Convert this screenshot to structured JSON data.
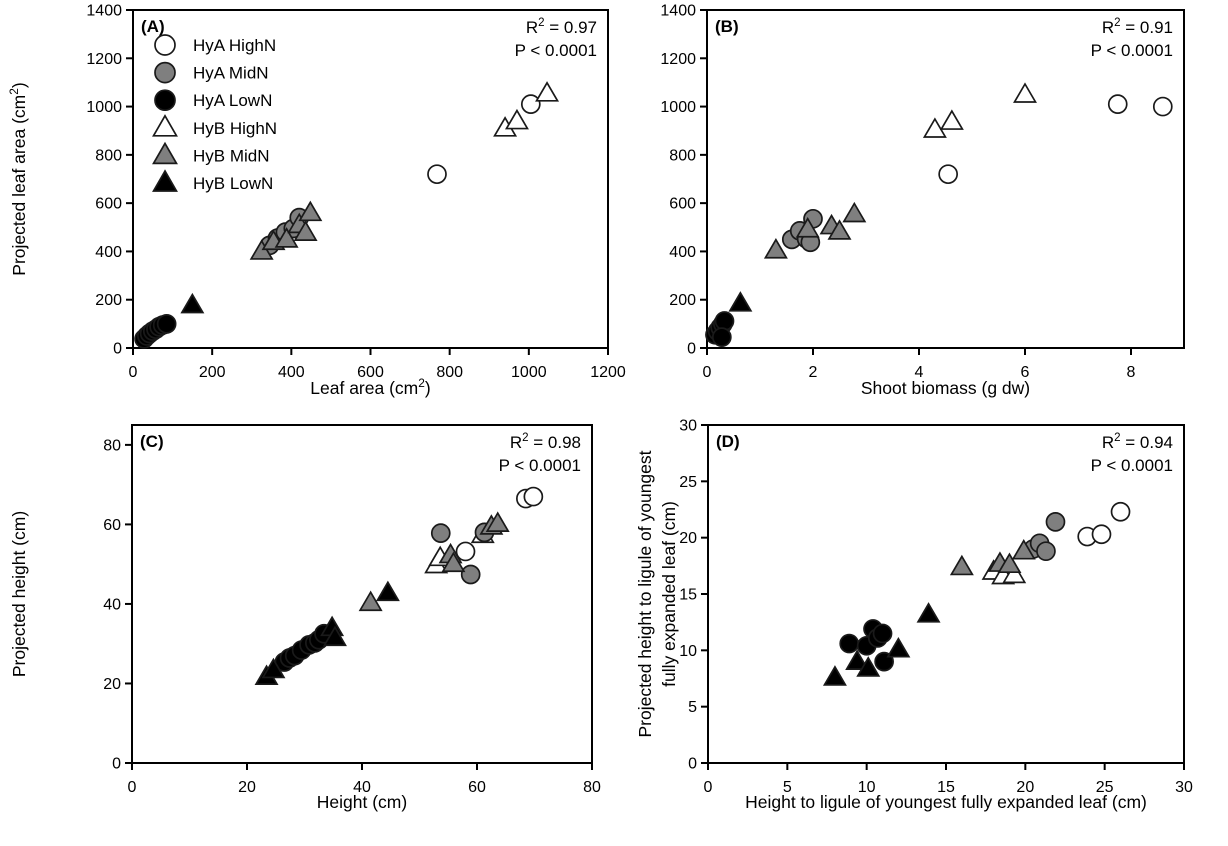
{
  "figure": {
    "background": "#ffffff"
  },
  "colors": {
    "axis": "#000000",
    "marker_stroke": "#1a1a1a",
    "fill_white": "#ffffff",
    "fill_gray": "#7f7f7f",
    "fill_black": "#000000"
  },
  "legend": {
    "shown_in_panel": "A"
  },
  "chart_data": [
    {
      "id": "A",
      "type": "scatter",
      "panel_label": "(A)",
      "stats": {
        "r2_segments": [
          {
            "t": "R"
          },
          {
            "t": "2",
            "sup": true
          },
          {
            "t": " = 0.97"
          }
        ],
        "p_text": "P < 0.0001"
      },
      "xlabel_segments": [
        {
          "t": "Leaf area (cm"
        },
        {
          "t": "2",
          "sup": true
        },
        {
          "t": ")"
        }
      ],
      "ylabel_lines": [
        [
          {
            "t": "Projected leaf area (cm"
          },
          {
            "t": "2",
            "sup": true
          },
          {
            "t": ")"
          }
        ]
      ],
      "xlim": [
        0,
        1200
      ],
      "ylim": [
        0,
        1400
      ],
      "xticks": {
        "values": [
          0,
          200,
          400,
          600,
          800,
          1000,
          1200
        ],
        "labels": [
          "0",
          "200",
          "400",
          "600",
          "800",
          "1000",
          "1200"
        ]
      },
      "yticks": {
        "values": [
          0,
          200,
          400,
          600,
          800,
          1000,
          1200,
          1400
        ],
        "labels": [
          "0",
          "200",
          "400",
          "600",
          "800",
          "1000",
          "1200",
          "1400"
        ]
      },
      "series": [
        {
          "name": "HyA HighN",
          "marker": "circle",
          "fill": "#ffffff",
          "points": [
            [
              768,
              720
            ],
            [
              1005,
              1010
            ]
          ]
        },
        {
          "name": "HyA MidN",
          "marker": "circle",
          "fill": "#7f7f7f",
          "points": [
            [
              345,
              425
            ],
            [
              365,
              455
            ],
            [
              385,
              480
            ],
            [
              405,
              495
            ],
            [
              420,
              540
            ]
          ]
        },
        {
          "name": "HyA LowN",
          "marker": "circle",
          "fill": "#000000",
          "points": [
            [
              28,
              38
            ],
            [
              35,
              50
            ],
            [
              42,
              60
            ],
            [
              50,
              70
            ],
            [
              58,
              78
            ],
            [
              66,
              88
            ],
            [
              75,
              95
            ],
            [
              85,
              100
            ]
          ]
        },
        {
          "name": "HyB HighN",
          "marker": "triangle",
          "fill": "#ffffff",
          "points": [
            [
              940,
              910
            ],
            [
              970,
              940
            ],
            [
              1046,
              1055
            ]
          ]
        },
        {
          "name": "HyB MidN",
          "marker": "triangle",
          "fill": "#7f7f7f",
          "points": [
            [
              325,
              400
            ],
            [
              355,
              440
            ],
            [
              388,
              450
            ],
            [
              420,
              510
            ],
            [
              436,
              478
            ],
            [
              448,
              560
            ]
          ]
        },
        {
          "name": "HyB LowN",
          "marker": "triangle",
          "fill": "#000000",
          "points": [
            [
              150,
              178
            ]
          ]
        }
      ]
    },
    {
      "id": "B",
      "type": "scatter",
      "panel_label": "(B)",
      "stats": {
        "r2_segments": [
          {
            "t": "R"
          },
          {
            "t": "2",
            "sup": true
          },
          {
            "t": " = 0.91"
          }
        ],
        "p_text": "P < 0.0001"
      },
      "xlabel_segments": [
        {
          "t": "Shoot biomass (g dw)"
        }
      ],
      "ylabel_lines": [],
      "xlim": [
        0,
        9.0
      ],
      "ylim": [
        0,
        1400
      ],
      "xticks": {
        "values": [
          0,
          2,
          4,
          6,
          8
        ],
        "labels": [
          "0",
          "2",
          "4",
          "6",
          "8"
        ]
      },
      "yticks": {
        "values": [
          0,
          200,
          400,
          600,
          800,
          1000,
          1200,
          1400
        ],
        "labels": [
          "0",
          "200",
          "400",
          "600",
          "800",
          "1000",
          "1200",
          "1400"
        ]
      },
      "series": [
        {
          "name": "HyA HighN",
          "marker": "circle",
          "fill": "#ffffff",
          "points": [
            [
              4.55,
              720
            ],
            [
              7.75,
              1010
            ],
            [
              8.6,
              1000
            ]
          ]
        },
        {
          "name": "HyA MidN",
          "marker": "circle",
          "fill": "#7f7f7f",
          "points": [
            [
              1.6,
              450
            ],
            [
              1.75,
              485
            ],
            [
              1.88,
              452
            ],
            [
              1.95,
              438
            ],
            [
              2.0,
              535
            ]
          ]
        },
        {
          "name": "HyA LowN",
          "marker": "circle",
          "fill": "#000000",
          "points": [
            [
              0.15,
              55
            ],
            [
              0.2,
              70
            ],
            [
              0.25,
              85
            ],
            [
              0.3,
              100
            ],
            [
              0.33,
              112
            ],
            [
              0.28,
              45
            ]
          ]
        },
        {
          "name": "HyB HighN",
          "marker": "triangle",
          "fill": "#ffffff",
          "points": [
            [
              4.3,
              905
            ],
            [
              4.62,
              938
            ],
            [
              6.0,
              1050
            ]
          ]
        },
        {
          "name": "HyB MidN",
          "marker": "triangle",
          "fill": "#7f7f7f",
          "points": [
            [
              1.3,
              405
            ],
            [
              1.9,
              492
            ],
            [
              2.35,
              505
            ],
            [
              2.5,
              483
            ],
            [
              2.78,
              555
            ]
          ]
        },
        {
          "name": "HyB LowN",
          "marker": "triangle",
          "fill": "#000000",
          "points": [
            [
              0.63,
              185
            ]
          ]
        }
      ]
    },
    {
      "id": "C",
      "type": "scatter",
      "panel_label": "(C)",
      "stats": {
        "r2_segments": [
          {
            "t": "R"
          },
          {
            "t": "2",
            "sup": true
          },
          {
            "t": " = 0.98"
          }
        ],
        "p_text": "P < 0.0001"
      },
      "xlabel_segments": [
        {
          "t": "Height (cm)"
        }
      ],
      "ylabel_lines": [
        [
          {
            "t": "Projected height (cm)"
          }
        ]
      ],
      "xlim": [
        0,
        80
      ],
      "ylim": [
        0,
        85
      ],
      "xticks": {
        "values": [
          0,
          20,
          40,
          60,
          80
        ],
        "labels": [
          "0",
          "20",
          "40",
          "60",
          "80"
        ]
      },
      "yticks": {
        "values": [
          0,
          20,
          40,
          60,
          80
        ],
        "labels": [
          "0",
          "20",
          "40",
          "60",
          "80"
        ]
      },
      "series": [
        {
          "name": "HyA HighN",
          "marker": "circle",
          "fill": "#ffffff",
          "points": [
            [
              58.0,
              53.2
            ],
            [
              68.5,
              66.5
            ],
            [
              69.8,
              67.0
            ]
          ]
        },
        {
          "name": "HyA MidN",
          "marker": "circle",
          "fill": "#7f7f7f",
          "points": [
            [
              53.7,
              57.8
            ],
            [
              58.9,
              47.4
            ],
            [
              61.3,
              58.0
            ]
          ]
        },
        {
          "name": "HyA LowN",
          "marker": "circle",
          "fill": "#000000",
          "points": [
            [
              26.5,
              25.4
            ],
            [
              27.4,
              26.4
            ],
            [
              28.3,
              27.0
            ],
            [
              29.5,
              28.4
            ],
            [
              30.8,
              29.7
            ],
            [
              31.8,
              30.2
            ],
            [
              32.5,
              31.0
            ],
            [
              33.4,
              32.5
            ]
          ]
        },
        {
          "name": "HyB HighN",
          "marker": "triangle",
          "fill": "#ffffff",
          "points": [
            [
              52.9,
              49.8
            ],
            [
              53.6,
              51.6
            ],
            [
              61.0,
              57.4
            ]
          ]
        },
        {
          "name": "HyB MidN",
          "marker": "triangle",
          "fill": "#7f7f7f",
          "points": [
            [
              41.5,
              40.3
            ],
            [
              55.4,
              52.3
            ],
            [
              55.9,
              50.1
            ],
            [
              62.5,
              59.5
            ],
            [
              63.6,
              60.2
            ]
          ]
        },
        {
          "name": "HyB LowN",
          "marker": "triangle",
          "fill": "#000000",
          "points": [
            [
              23.4,
              21.7
            ],
            [
              24.6,
              23.4
            ],
            [
              34.8,
              34.0
            ],
            [
              35.3,
              31.5
            ],
            [
              44.5,
              42.8
            ]
          ]
        }
      ]
    },
    {
      "id": "D",
      "type": "scatter",
      "panel_label": "(D)",
      "stats": {
        "r2_segments": [
          {
            "t": "R"
          },
          {
            "t": "2",
            "sup": true
          },
          {
            "t": " = 0.94"
          }
        ],
        "p_text": "P < 0.0001"
      },
      "xlabel_segments": [
        {
          "t": "Height to ligule of youngest fully expanded leaf (cm)"
        }
      ],
      "ylabel_lines": [
        [
          {
            "t": "Projected height to ligule of youngest"
          }
        ],
        [
          {
            "t": "fully expanded leaf (cm)"
          }
        ]
      ],
      "xlim": [
        0,
        30
      ],
      "ylim": [
        0,
        30
      ],
      "xticks": {
        "values": [
          0,
          5,
          10,
          15,
          20,
          25,
          30
        ],
        "labels": [
          "0",
          "5",
          "10",
          "15",
          "20",
          "25",
          "30"
        ]
      },
      "yticks": {
        "values": [
          0,
          5,
          10,
          15,
          20,
          25,
          30
        ],
        "labels": [
          "0",
          "5",
          "10",
          "15",
          "20",
          "25",
          "30"
        ]
      },
      "series": [
        {
          "name": "HyA HighN",
          "marker": "circle",
          "fill": "#ffffff",
          "points": [
            [
              23.9,
              20.1
            ],
            [
              24.8,
              20.3
            ],
            [
              26.0,
              22.3
            ]
          ]
        },
        {
          "name": "HyA MidN",
          "marker": "circle",
          "fill": "#7f7f7f",
          "points": [
            [
              20.5,
              19.0
            ],
            [
              20.9,
              19.5
            ],
            [
              21.3,
              18.8
            ],
            [
              21.9,
              21.4
            ]
          ]
        },
        {
          "name": "HyA LowN",
          "marker": "circle",
          "fill": "#000000",
          "points": [
            [
              8.9,
              10.6
            ],
            [
              10.0,
              10.4
            ],
            [
              10.4,
              11.9
            ],
            [
              10.7,
              11.1
            ],
            [
              11.0,
              11.5
            ],
            [
              11.1,
              9.0
            ]
          ]
        },
        {
          "name": "HyB HighN",
          "marker": "triangle",
          "fill": "#ffffff",
          "points": [
            [
              18.0,
              17.0
            ],
            [
              18.6,
              16.6
            ],
            [
              19.3,
              16.7
            ]
          ]
        },
        {
          "name": "HyB MidN",
          "marker": "triangle",
          "fill": "#7f7f7f",
          "points": [
            [
              16.0,
              17.4
            ],
            [
              18.4,
              17.7
            ],
            [
              19.0,
              17.6
            ],
            [
              19.9,
              18.8
            ]
          ]
        },
        {
          "name": "HyB LowN",
          "marker": "triangle",
          "fill": "#000000",
          "points": [
            [
              8.0,
              7.6
            ],
            [
              9.4,
              9.0
            ],
            [
              10.1,
              8.4
            ],
            [
              12.0,
              10.1
            ],
            [
              13.9,
              13.2
            ]
          ]
        }
      ]
    }
  ]
}
